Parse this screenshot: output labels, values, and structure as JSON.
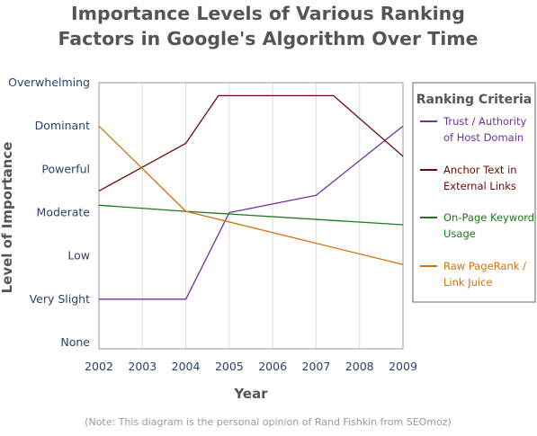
{
  "chart_data": {
    "type": "line",
    "title_lines": [
      "Importance Levels of Various Ranking",
      "Factors in Google's Algorithm Over Time"
    ],
    "xlabel": "Year",
    "ylabel": "Level of Importance",
    "x_ticks": [
      2002,
      2003,
      2004,
      2005,
      2006,
      2007,
      2008,
      2009
    ],
    "xlim": [
      2002,
      2009
    ],
    "y_categories": [
      "None",
      "Very Slight",
      "Low",
      "Moderate",
      "Powerful",
      "Dominant",
      "Overwhelming"
    ],
    "ylim": [
      0,
      6
    ],
    "grid": "vertical",
    "legend": {
      "title": "Ranking Criteria",
      "placement": "right"
    },
    "series": [
      {
        "name_lines": [
          "Trust / Authority",
          "of Host Domain"
        ],
        "color": "#7030a0",
        "x": [
          2002,
          2004,
          2005,
          2007,
          2009
        ],
        "y": [
          1,
          1,
          3,
          3.4,
          5
        ]
      },
      {
        "name_lines": [
          "Anchor Text in",
          "External Links"
        ],
        "color": "#6b0a0a",
        "x": [
          2002,
          2004,
          2004.75,
          2007.4,
          2009
        ],
        "y": [
          3.5,
          4.6,
          5.7,
          5.7,
          4.3
        ]
      },
      {
        "name_lines": [
          "On-Page Keyword",
          "Usage"
        ],
        "color": "#1a7a1a",
        "x": [
          2002,
          2004,
          2009
        ],
        "y": [
          3.17,
          3.03,
          2.72
        ]
      },
      {
        "name_lines": [
          "Raw PageRank /",
          "Link Juice"
        ],
        "color": "#d07010",
        "x": [
          2002,
          2004,
          2009
        ],
        "y": [
          5,
          3.03,
          1.8
        ]
      }
    ],
    "note": "(Note: This diagram is the personal opinion of Rand Fishkin from SEOmoz)"
  }
}
